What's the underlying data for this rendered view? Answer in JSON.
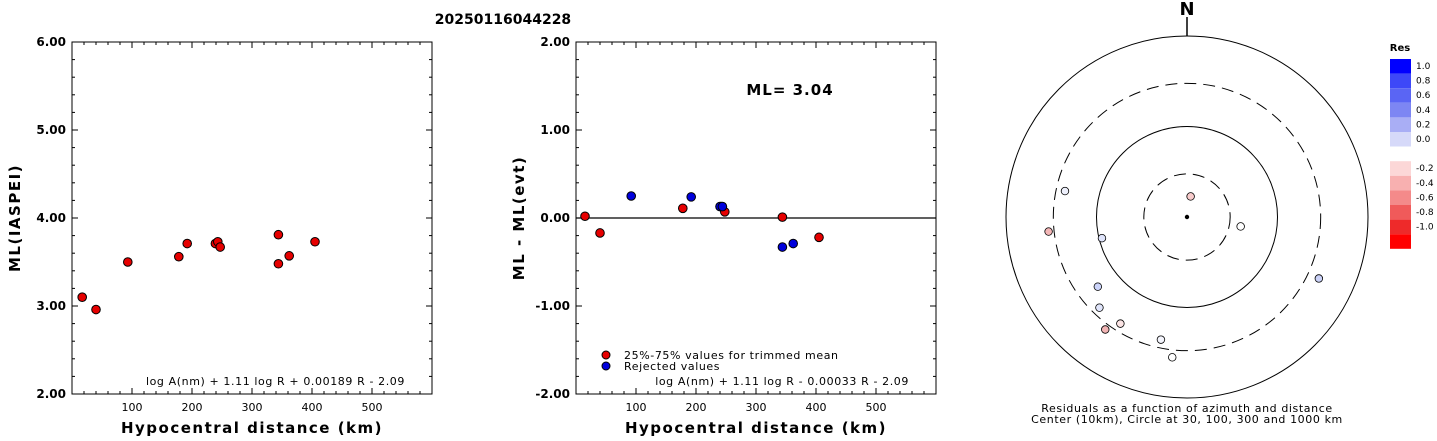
{
  "title": "20250116044228",
  "chart_data": [
    {
      "type": "scatter",
      "xlabel": "Hypocentral distance (km)",
      "ylabel": "ML(IASPEI)",
      "xlim": [
        0,
        600
      ],
      "ylim": [
        2.0,
        6.0
      ],
      "xticks": [
        "100",
        "200",
        "300",
        "400",
        "500"
      ],
      "yticks": [
        "2.00",
        "3.00",
        "4.00",
        "5.00",
        "6.00"
      ],
      "formula": "log A(nm) + 1.11 log R + 0.00189 R - 2.09",
      "series": [
        {
          "color": "#e60000",
          "points": [
            [
              17,
              3.1
            ],
            [
              40,
              2.96
            ],
            [
              93,
              3.5
            ],
            [
              178,
              3.56
            ],
            [
              192,
              3.71
            ],
            [
              239,
              3.71
            ],
            [
              243,
              3.73
            ],
            [
              247,
              3.67
            ],
            [
              344,
              3.81
            ],
            [
              344,
              3.48
            ],
            [
              362,
              3.57
            ],
            [
              405,
              3.73
            ]
          ]
        }
      ]
    },
    {
      "type": "scatter",
      "xlabel": "Hypocentral distance (km)",
      "ylabel": "ML - ML(evt)",
      "xlim": [
        0,
        600
      ],
      "ylim": [
        -2.0,
        2.0
      ],
      "xticks": [
        "100",
        "200",
        "300",
        "400",
        "500"
      ],
      "yticks": [
        "-2.00",
        "-1.00",
        "0.00",
        "1.00",
        "2.00"
      ],
      "annotation": "ML= 3.04",
      "formula": "log A(nm) + 1.11 log R - 0.00033 R - 2.09",
      "legend": {
        "placement": "bottom-left",
        "items": [
          {
            "label": "25%-75% values for trimmed mean",
            "color": "#e60000"
          },
          {
            "label": "Rejected values",
            "color": "#0000dc"
          }
        ]
      },
      "series": [
        {
          "color": "#e60000",
          "points": [
            [
              15,
              0.02
            ],
            [
              40,
              -0.17
            ],
            [
              178,
              0.11
            ],
            [
              242,
              0.13
            ],
            [
              248,
              0.07
            ],
            [
              344,
              0.01
            ],
            [
              405,
              -0.22
            ]
          ]
        },
        {
          "color": "#0000dc",
          "points": [
            [
              92,
              0.25
            ],
            [
              192,
              0.24
            ],
            [
              240,
              0.13
            ],
            [
              244,
              0.13
            ],
            [
              344,
              -0.33
            ],
            [
              362,
              -0.29
            ]
          ]
        }
      ]
    }
  ],
  "polar": {
    "north_label": "N",
    "caption1": "Residuals as a function of azimuth and distance",
    "caption2": "Center (10km), Circle at 30, 100, 300 and 1000 km",
    "stations": [
      {
        "az": 10,
        "dist": 17,
        "res": 0.15,
        "color": "#f8cccc"
      },
      {
        "az": 100,
        "dist": 40,
        "res": -0.05,
        "color": "#ffffff"
      },
      {
        "az": 256,
        "dist": 93,
        "res": 0.2,
        "color": "#dfe4fb"
      },
      {
        "az": 232,
        "dist": 178,
        "res": 0.3,
        "color": "#ccd4fa"
      },
      {
        "az": 282,
        "dist": 239,
        "res": 0.1,
        "color": "#eef0fc"
      },
      {
        "az": 224,
        "dist": 247,
        "res": 0.15,
        "color": "#e0e5fb"
      },
      {
        "az": 212,
        "dist": 245,
        "res": -0.1,
        "color": "#fbe4e4"
      },
      {
        "az": 192,
        "dist": 243,
        "res": 0.05,
        "color": "#f4f5fd"
      },
      {
        "az": 264,
        "dist": 345,
        "res": -0.3,
        "color": "#f3b6b6"
      },
      {
        "az": 216,
        "dist": 344,
        "res": -0.3,
        "color": "#f1b4b4"
      },
      {
        "az": 186,
        "dist": 362,
        "res": 0.0,
        "color": "#ffffff"
      },
      {
        "az": 115,
        "dist": 405,
        "res": 0.3,
        "color": "#cbd2f8"
      }
    ]
  },
  "colorbar": {
    "title": "Res",
    "stops": [
      {
        "label": "1.0",
        "color": "#0000ff"
      },
      {
        "label": "0.8",
        "color": "#3d48f8"
      },
      {
        "label": "0.6",
        "color": "#5a65f4"
      },
      {
        "label": "0.4",
        "color": "#7d86f3"
      },
      {
        "label": "0.2",
        "color": "#a9aef5"
      },
      {
        "label": "0.0",
        "color": "#d6d9f9"
      },
      {
        "label": "",
        "color": "#ffffff"
      },
      {
        "label": "-0.2",
        "color": "#fcd7d7"
      },
      {
        "label": "-0.4",
        "color": "#f8b0b0"
      },
      {
        "label": "-0.6",
        "color": "#f48a8a"
      },
      {
        "label": "-0.8",
        "color": "#f05a5a"
      },
      {
        "label": "-1.0",
        "color": "#ee2a2a"
      },
      {
        "label": "",
        "color": "#ff0000"
      }
    ]
  }
}
